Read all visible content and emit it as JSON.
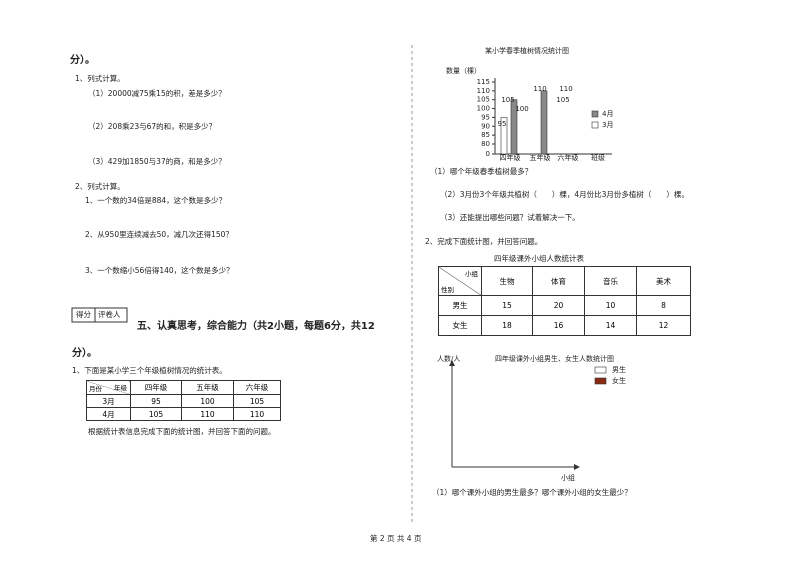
{
  "header": {
    "continuation": "分）。"
  },
  "section4": {
    "q1": {
      "title": "1、列式计算。",
      "items": [
        "（1）20000减75乘15的积，差是多少？",
        "（2）208乘23与67的和，积是多少？",
        "（3）429加1850与37的商，和是多少？"
      ]
    },
    "q2": {
      "title": "2、列式计算。",
      "items": [
        "1、一个数的34倍是884，这个数是多少？",
        "2、从950里连续减去50，减几次还得150？",
        "3、一个数缩小56倍得140，这个数是多少？"
      ]
    }
  },
  "score_box": {
    "labels": [
      "得分",
      "评卷人"
    ]
  },
  "section5": {
    "title": "五、认真思考，综合能力（共2小题，每题6分，共12",
    "title_end": "分）。",
    "q1": {
      "intro": "1、下面是某小学三个年级植树情况的统计表。",
      "table": {
        "corner_top": "年级",
        "corner_bottom": "月份",
        "columns": [
          "四年级",
          "五年级",
          "六年级"
        ],
        "rows": [
          [
            "3月",
            95,
            100,
            105
          ],
          [
            "4月",
            105,
            110,
            110
          ]
        ]
      },
      "instruction": "根据统计表信息完成下面的统计图，并回答下面的问题。",
      "chart": {
        "type": "bar",
        "title": "某小学春季植树情况统计图",
        "y_label": "数量（棵）",
        "x_label": "班级",
        "categories": [
          "四年级",
          "五年级",
          "六年级"
        ],
        "series": [
          {
            "name": "4月",
            "color": "#888888",
            "values": [
              105,
              110,
              null
            ]
          },
          {
            "name": "3月",
            "color": "#ffffff",
            "values": [
              95,
              null,
              null
            ]
          }
        ],
        "ylim": [
          0,
          115
        ],
        "yticks": [
          0,
          80,
          85,
          90,
          95,
          100,
          105,
          110,
          115
        ],
        "annotations": [
          "105",
          "100",
          "95",
          "110",
          "105",
          "110"
        ]
      },
      "questions": [
        "（1）哪个年级春季植树最多？",
        "（2）3月份3个年级共植树（　　）棵，4月份比3月份多植树（　　）棵。",
        "（3）还能提出哪些问题？试着解决一下。"
      ]
    },
    "q2": {
      "intro": "2、完成下面统计图，并回答问题。",
      "table": {
        "title": "四年级课外小组人数统计表",
        "corner_top": "小组",
        "corner_bottom": "性别",
        "columns": [
          "生物",
          "体育",
          "音乐",
          "美术"
        ],
        "rows": [
          [
            "男生",
            15,
            20,
            10,
            8
          ],
          [
            "女生",
            18,
            16,
            14,
            12
          ]
        ]
      },
      "chart": {
        "title": "四年级课外小组男生、女生人数统计图",
        "y_label": "人数/人",
        "x_label": "小组",
        "legend": [
          {
            "name": "男生",
            "color": "#ffffff"
          },
          {
            "name": "女生",
            "color": "#8b2a14"
          }
        ]
      },
      "question": "（1）哪个课外小组的男生最多？哪个课外小组的女生最少？"
    }
  },
  "footer": "第 2 页 共 4 页"
}
